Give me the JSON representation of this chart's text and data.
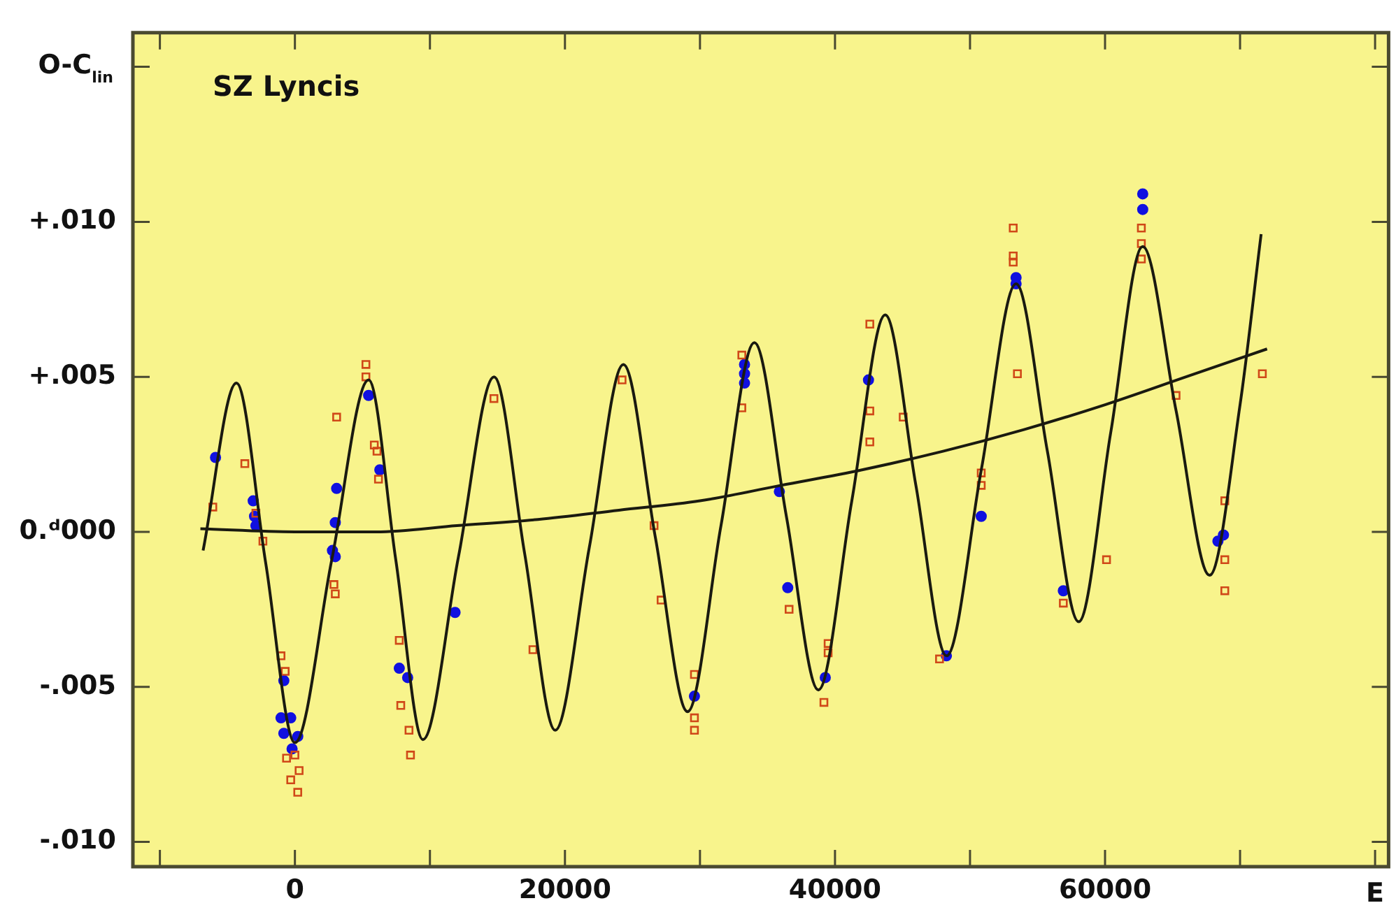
{
  "chart_data": {
    "type": "scatter",
    "title": "SZ Lyncis",
    "xlabel": "E",
    "ylabel": "O-C$_{lin}$",
    "xlim": [
      -12000,
      81000
    ],
    "xticks": [
      {
        "value": -10000,
        "label": null
      },
      0,
      {
        "value": 10000,
        "label": null
      },
      20000,
      {
        "value": 30000,
        "label": null
      },
      40000,
      {
        "value": 50000,
        "label": null
      },
      60000,
      {
        "value": 70000,
        "label": null
      },
      {
        "value": 80000,
        "label": null
      }
    ],
    "ylim": [
      -0.0108,
      0.0161
    ],
    "yticks": [
      {
        "value": -0.01,
        "label": "-.010"
      },
      {
        "value": -0.005,
        "label": "-.005"
      },
      {
        "value": 0,
        "label": "0.ᵈ000"
      },
      {
        "value": 0.005,
        "label": "+.005"
      },
      {
        "value": 0.01,
        "label": "+.010"
      },
      {
        "value": 0.015,
        "label": null
      }
    ],
    "series": [
      {
        "type": "line",
        "color": "#1a1a10",
        "marker": "none",
        "x": [
          -6800,
          -4330,
          -2165,
          0,
          2730,
          5460,
          7470,
          9480,
          12115,
          14750,
          17015,
          19280,
          21805,
          24330,
          26705,
          29080,
          31555,
          34030,
          36400,
          38770,
          41245,
          43720,
          45990,
          48260,
          50835,
          53410,
          55730,
          58050,
          60420,
          62790,
          65265,
          67740,
          70000,
          71560
        ],
        "values": [
          -0.0006,
          0.0048,
          -0.001,
          -0.0068,
          -0.0009,
          0.0049,
          -0.0009,
          -0.0067,
          -0.0008,
          0.005,
          -0.0007,
          -0.0064,
          -0.0005,
          0.0054,
          -0.0002,
          -0.0058,
          0.0002,
          0.0061,
          0.0005,
          -0.0051,
          0.001,
          0.007,
          0.0015,
          -0.004,
          0.002,
          0.008,
          0.0026,
          -0.0029,
          0.0032,
          0.0092,
          0.0039,
          -0.0014,
          0.0041,
          0.0096
        ]
      },
      {
        "type": "line",
        "color": "#1a1a10",
        "marker": "none",
        "x": [
          -7000,
          0,
          6000,
          12000,
          18000,
          24000,
          30000,
          36000,
          42000,
          48000,
          54000,
          60000,
          66000,
          72000
        ],
        "values": [
          0.0001,
          0,
          0,
          0.0002,
          0.0004,
          0.0007,
          0.001,
          0.0015,
          0.002,
          0.0026,
          0.0033,
          0.0041,
          0.005,
          0.0059
        ]
      },
      {
        "type": "scatter",
        "color": "#d04818",
        "marker": "square",
        "x": [
          5260,
          5260,
          3090,
          5880,
          6080,
          -6080,
          -3710,
          -2890,
          -2370,
          -1030,
          -720,
          -620,
          0,
          310,
          -310,
          210,
          2890,
          2990,
          6190,
          7730,
          7840,
          8450,
          8560,
          14740,
          24230,
          33100,
          33100,
          42580,
          42580,
          42580,
          45050,
          26600,
          27120,
          17630,
          29590,
          29590,
          29590,
          36600,
          39490,
          39490,
          39180,
          53200,
          53200,
          53200,
          53510,
          62690,
          62690,
          62690,
          65260,
          71650,
          50830,
          50830,
          47740,
          60110,
          56910,
          68870,
          68870,
          68870
        ],
        "values": [
          0.0054,
          0.005,
          0.0037,
          0.0028,
          0.0026,
          0.0008,
          0.0022,
          0.0006,
          -0.0003,
          -0.004,
          -0.0045,
          -0.0073,
          -0.0072,
          -0.0077,
          -0.008,
          -0.0084,
          -0.0017,
          -0.002,
          0.0017,
          -0.0035,
          -0.0056,
          -0.0064,
          -0.0072,
          0.0043,
          0.0049,
          0.0057,
          0.004,
          0.0067,
          0.0039,
          0.0029,
          0.0037,
          0.0002,
          -0.0022,
          -0.0038,
          -0.0046,
          -0.006,
          -0.0064,
          -0.0025,
          -0.0036,
          -0.0039,
          -0.0055,
          0.0098,
          0.0089,
          0.0087,
          0.0051,
          0.0098,
          0.0093,
          0.0088,
          0.0044,
          0.0051,
          0.0019,
          0.0015,
          -0.0041,
          -0.0009,
          -0.0023,
          0.001,
          -0.0009,
          -0.0019
        ]
      },
      {
        "type": "scatter",
        "color": "#1010e0",
        "marker": "circle",
        "x": [
          -5880,
          -3090,
          -2990,
          -2890,
          -820,
          -1030,
          -310,
          -820,
          210,
          -210,
          3090,
          2990,
          2780,
          2990,
          6290,
          7730,
          8350,
          11860,
          5460,
          33300,
          33300,
          33300,
          42480,
          35880,
          36500,
          29590,
          39280,
          50830,
          48250,
          56910,
          68770,
          68360,
          53410,
          53410,
          62790,
          62790
        ],
        "values": [
          0.0024,
          0.001,
          0.0005,
          0.0002,
          -0.0048,
          -0.006,
          -0.006,
          -0.0065,
          -0.0066,
          -0.007,
          0.0014,
          0.0003,
          -0.0006,
          -0.0008,
          0.002,
          -0.0044,
          -0.0047,
          -0.0026,
          0.0044,
          0.0054,
          0.0051,
          0.0048,
          0.0049,
          0.0013,
          -0.0018,
          -0.0053,
          -0.0047,
          0.0005,
          -0.004,
          -0.0019,
          -0.0001,
          -0.0003,
          0.008,
          0.0082,
          0.0104,
          0.0109
        ]
      }
    ]
  }
}
